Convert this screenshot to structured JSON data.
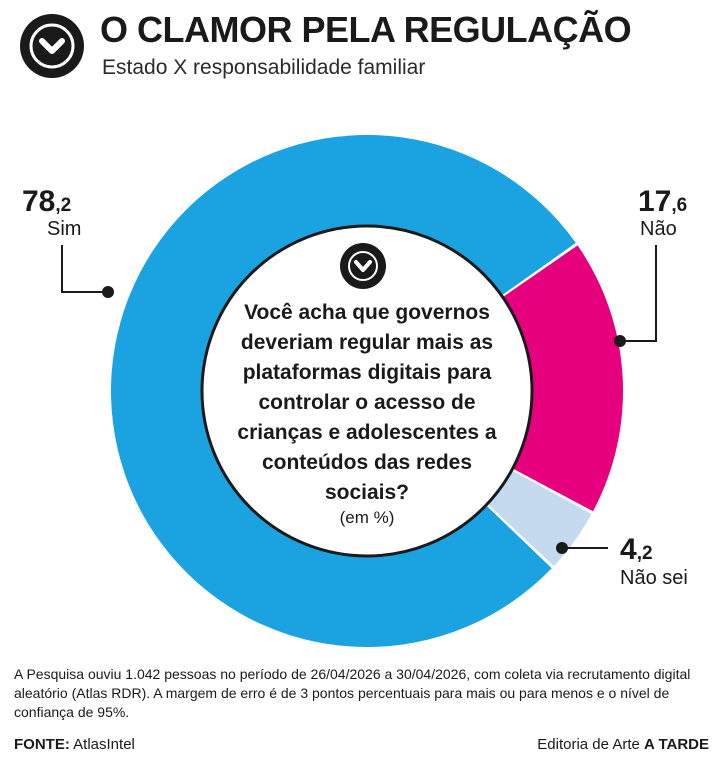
{
  "header": {
    "title": "O CLAMOR PELA REGULAÇÃO",
    "subtitle": "Estado X responsabilidade familiar",
    "badge_icon": "chevron-down-icon"
  },
  "center": {
    "question": "Você acha que governos deveriam regular mais as plataformas digitais para controlar o acesso de crianças e adolescentes a conteúdos das redes sociais?",
    "unit": "(em %)",
    "icon": "chevron-down-icon"
  },
  "chart_data": {
    "type": "pie",
    "style": "donut",
    "unit": "%",
    "slices": [
      {
        "label": "Sim",
        "value": 78.2,
        "value_int": "78",
        "value_dec": ",2",
        "color": "#1aa3e0"
      },
      {
        "label": "Não",
        "value": 17.6,
        "value_int": "17",
        "value_dec": ",6",
        "color": "#e6007e"
      },
      {
        "label": "Não sei",
        "value": 4.2,
        "value_int": "4",
        "value_dec": ",2",
        "color": "#c5d9ef"
      }
    ],
    "legend": "none"
  },
  "footer": {
    "note": "A Pesquisa ouviu 1.042 pessoas no período de 26/04/2026 a 30/04/2026, com coleta via recrutamento digital aleatório (Atlas RDR). A margem de erro é de 3 pontos percentuais para mais ou para menos e o nível de confiança de 95%.",
    "source_label": "FONTE:",
    "source_name": "AtlasIntel",
    "credit_prefix": "Editoria de Arte",
    "credit_brand": "A TARDE"
  }
}
